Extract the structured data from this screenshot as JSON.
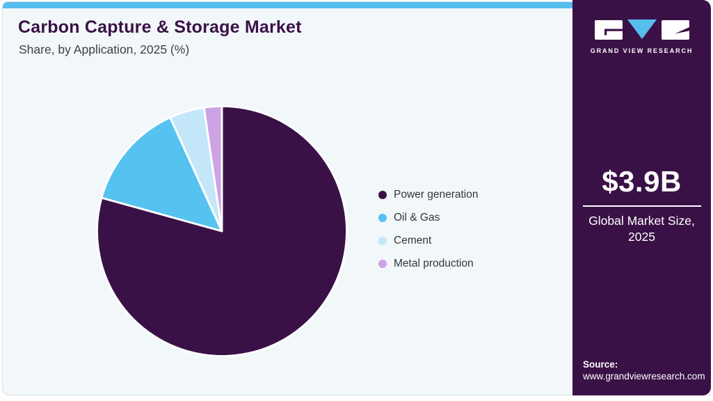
{
  "header": {
    "title": "Carbon Capture & Storage Market",
    "subtitle": "Share, by Application, 2025 (%)"
  },
  "chart_data": {
    "type": "pie",
    "title": "Carbon Capture & Storage Market Share, by Application, 2025 (%)",
    "unit": "%",
    "start_angle_deg_from_top": 0,
    "direction": "clockwise",
    "legend_position": "right",
    "series": [
      {
        "label": "Power generation",
        "value": 79.3,
        "color": "#3A1147"
      },
      {
        "label": "Oil & Gas",
        "value": 13.9,
        "color": "#56C2F0"
      },
      {
        "label": "Cement",
        "value": 4.5,
        "color": "#C3E6F8"
      },
      {
        "label": "Metal production",
        "value": 2.3,
        "color": "#CDA3E4"
      }
    ]
  },
  "sidebar": {
    "brand": "GRAND VIEW RESEARCH",
    "market_size_value": "$3.9B",
    "market_size_label": "Global Market Size, 2025",
    "source_label": "Source:",
    "source_url": "www.grandviewresearch.com"
  },
  "colors": {
    "accent": "#56BEEC",
    "card_bg": "#F2F7FA",
    "sidebar_bg": "#3A1147",
    "title_color": "#3A1147",
    "subtitle_color": "#3F4046",
    "legend_color": "#35353B",
    "slice_stroke": "#FFFFFF",
    "logo_triangle": "#56BEEC",
    "logo_glyph_bg": "#FFFFFF"
  }
}
